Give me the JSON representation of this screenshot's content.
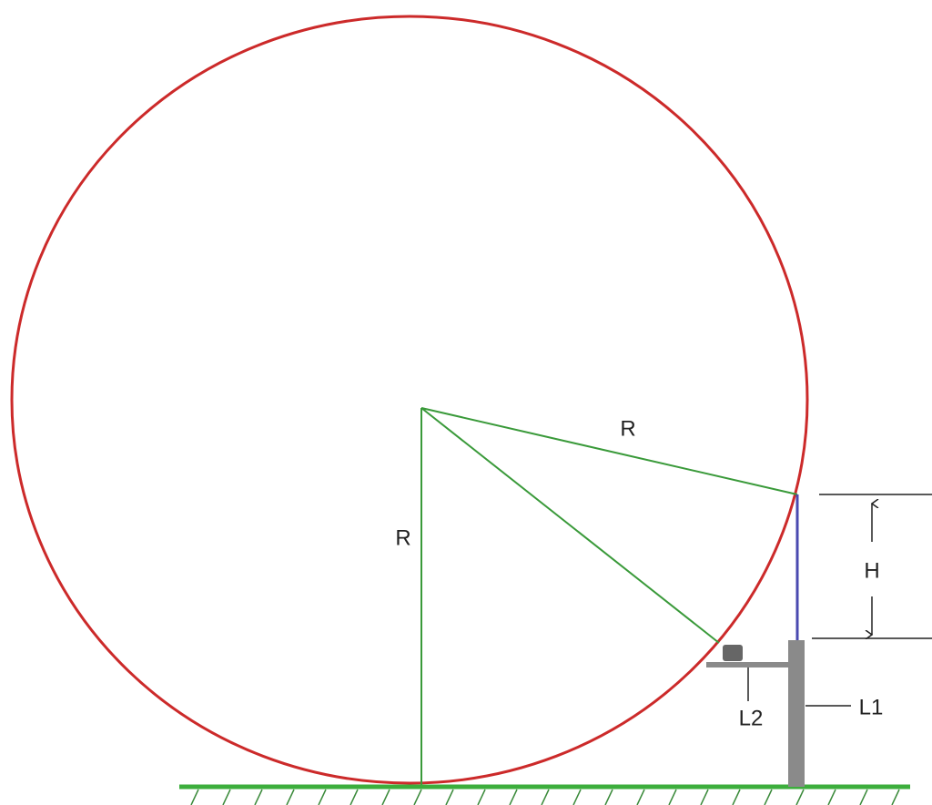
{
  "labels": {
    "radius_slant": "R",
    "radius_vertical": "R",
    "height": "H",
    "l1": "L1",
    "l2": "L2"
  }
}
